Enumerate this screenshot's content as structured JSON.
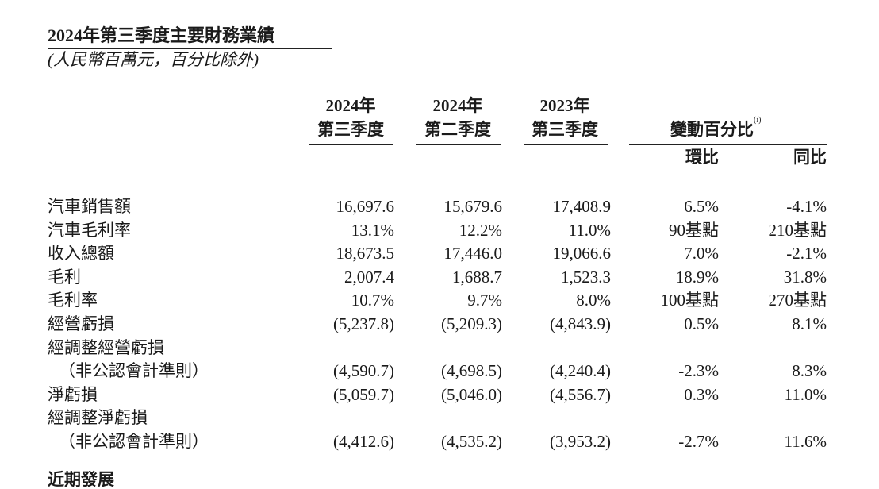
{
  "title": "2024年第三季度主要財務業績",
  "subtitle": "(人民幣百萬元，百分比除外)",
  "table": {
    "columns": [
      {
        "year": "2024年",
        "period": "第三季度"
      },
      {
        "year": "2024年",
        "period": "第二季度"
      },
      {
        "year": "2023年",
        "period": "第三季度"
      }
    ],
    "change_header": "變動百分比",
    "change_note": "(i)",
    "change_columns": [
      "環比",
      "同比"
    ],
    "rows": [
      {
        "label": "汽車銷售額",
        "cells": [
          "16,697.6",
          "15,679.6",
          "17,408.9",
          "6.5%",
          "-4.1%"
        ]
      },
      {
        "label": "汽車毛利率",
        "cells": [
          "13.1%",
          "12.2%",
          "11.0%",
          "90基點",
          "210基點"
        ]
      },
      {
        "label": "收入總額",
        "cells": [
          "18,673.5",
          "17,446.0",
          "19,066.6",
          "7.0%",
          "-2.1%"
        ]
      },
      {
        "label": "毛利",
        "cells": [
          "2,007.4",
          "1,688.7",
          "1,523.3",
          "18.9%",
          "31.8%"
        ]
      },
      {
        "label": "毛利率",
        "cells": [
          "10.7%",
          "9.7%",
          "8.0%",
          "100基點",
          "270基點"
        ]
      },
      {
        "label": "經營虧損",
        "cells": [
          "(5,237.8)",
          "(5,209.3)",
          "(4,843.9)",
          "0.5%",
          "8.1%"
        ]
      },
      {
        "label": "經調整經營虧損",
        "sublabel": "（非公認會計準則）",
        "cells": [
          "(4,590.7)",
          "(4,698.5)",
          "(4,240.4)",
          "-2.3%",
          "8.3%"
        ]
      },
      {
        "label": "淨虧損",
        "cells": [
          "(5,059.7)",
          "(5,046.0)",
          "(4,556.7)",
          "0.3%",
          "11.0%"
        ]
      },
      {
        "label": "經調整淨虧損",
        "sublabel": "（非公認會計準則）",
        "cells": [
          "(4,412.6)",
          "(4,535.2)",
          "(3,953.2)",
          "-2.7%",
          "11.6%"
        ]
      }
    ]
  },
  "footer": "近期發展"
}
